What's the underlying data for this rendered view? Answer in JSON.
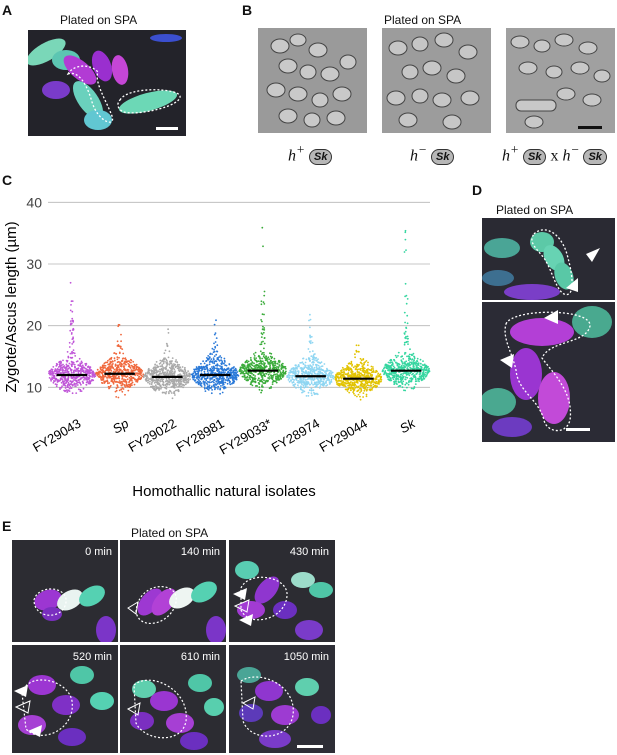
{
  "panels": {
    "A": {
      "letter": "A",
      "caption": "Plated on SPA"
    },
    "B": {
      "letter": "B",
      "caption": "Plated on SPA",
      "genotypes": [
        {
          "sign": "+",
          "strain": "Sk"
        },
        {
          "sign": "−",
          "strain": "Sk"
        },
        {
          "sign_a": "+",
          "strain_a": "Sk",
          "x": "x",
          "sign_b": "−",
          "strain_b": "Sk"
        }
      ],
      "h_letter": "h"
    },
    "C": {
      "letter": "C"
    },
    "D": {
      "letter": "D",
      "caption": "Plated on SPA"
    },
    "E": {
      "letter": "E",
      "caption": "Plated on SPA",
      "timepoints": [
        "0 min",
        "140 min",
        "430 min",
        "520 min",
        "610 min",
        "1050 min"
      ]
    }
  },
  "chart_data": {
    "type": "scatter",
    "subtype": "beeswarm",
    "ylabel": "Zygote/Ascus length (µm)",
    "xlabel": "Homothallic natural isolates",
    "ylim": [
      6,
      42
    ],
    "yticks": [
      10,
      20,
      30,
      40
    ],
    "grid": true,
    "categories": [
      "FY29043",
      "Sp",
      "FY29022",
      "FY28981",
      "FY29033*",
      "FY28974",
      "FY29044",
      "Sk"
    ],
    "italic_categories": [
      "Sp",
      "Sk"
    ],
    "medians": [
      12.0,
      12.2,
      11.7,
      12.0,
      12.7,
      11.8,
      11.4,
      12.7
    ],
    "spread_low": [
      7.5,
      7.5,
      7.5,
      7.5,
      7.0,
      7.5,
      7.5,
      7.5
    ],
    "spread_high": [
      28.5,
      22.0,
      20.5,
      22.0,
      36.0,
      22.5,
      18.0,
      35.5
    ],
    "colors": [
      "#c056d8",
      "#f0693e",
      "#a9a9a9",
      "#2a79d8",
      "#3aab3a",
      "#8fd6f2",
      "#e2c300",
      "#35d6a0"
    ]
  }
}
